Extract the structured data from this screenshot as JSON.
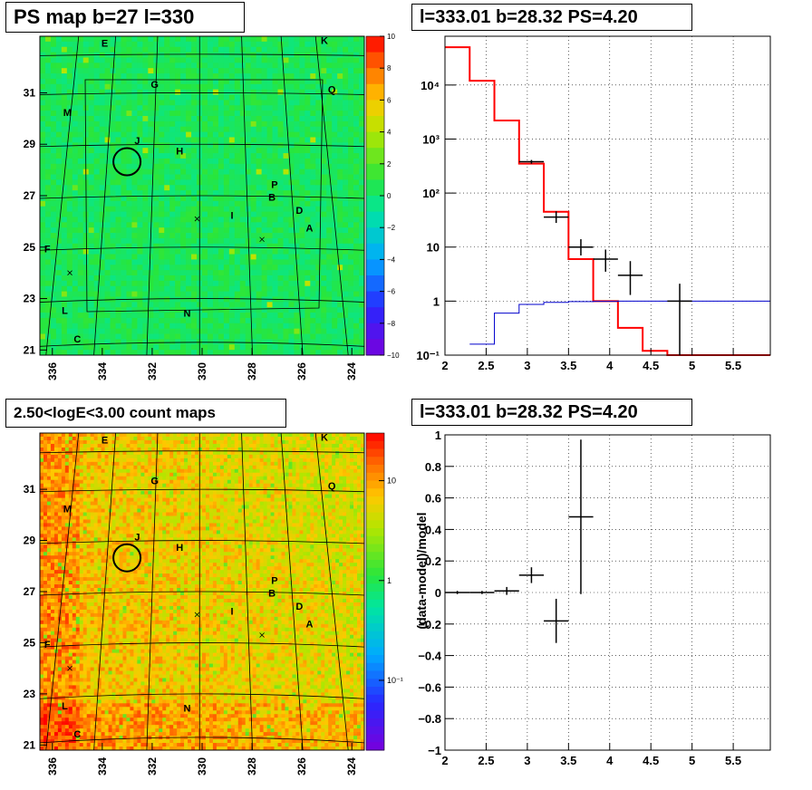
{
  "panels": {
    "ps_map": {
      "title": "PS map b=27 l=330",
      "x_ticks": [
        "336",
        "334",
        "332",
        "330",
        "328",
        "326",
        "324"
      ],
      "y_ticks": [
        "31",
        "29",
        "27",
        "25",
        "23",
        "21"
      ],
      "colorbar_ticks": [
        "10",
        "8",
        "6",
        "4",
        "2",
        "0",
        "−2",
        "−4",
        "−6",
        "−8",
        "−10"
      ],
      "source_labels": [
        "E",
        "K",
        "G",
        "Q",
        "M",
        "J",
        "H",
        "P",
        "B",
        "D",
        "I",
        "A",
        "F",
        "L",
        "N",
        "C"
      ]
    },
    "count_map": {
      "title": "2.50<logE<3.00 count maps",
      "x_ticks": [
        "336",
        "334",
        "332",
        "330",
        "328",
        "326",
        "324"
      ],
      "y_ticks": [
        "31",
        "29",
        "27",
        "25",
        "23",
        "21"
      ],
      "colorbar_ticks": [
        "10",
        "1",
        "10⁻¹"
      ],
      "source_labels": [
        "E",
        "K",
        "G",
        "Q",
        "M",
        "J",
        "H",
        "P",
        "B",
        "D",
        "I",
        "A",
        "F",
        "L",
        "N",
        "C"
      ]
    },
    "spectrum": {
      "title": "l=333.01 b=28.32 PS=4.20",
      "x_ticks": [
        "2",
        "2.5",
        "3",
        "3.5",
        "4",
        "4.5",
        "5",
        "5.5"
      ],
      "y_ticks": [
        "10⁻¹",
        "1",
        "10",
        "10²",
        "10³",
        "10⁴"
      ]
    },
    "residual": {
      "title": "l=333.01 b=28.32 PS=4.20",
      "ylabel": "(data-model)/model",
      "x_ticks": [
        "2",
        "2.5",
        "3",
        "3.5",
        "4",
        "4.5",
        "5",
        "5.5"
      ],
      "y_ticks": [
        "1",
        "0.8",
        "0.6",
        "0.4",
        "0.2",
        "0",
        "−0.2",
        "−0.4",
        "−0.6",
        "−0.8",
        "−1"
      ]
    }
  },
  "chart_data": [
    {
      "type": "heatmap",
      "title": "PS map b=27 l=330",
      "xlim": [
        336.5,
        323.5
      ],
      "ylim": [
        20.8,
        33.2
      ],
      "zlim": [
        -10,
        10
      ],
      "colorbar": "rainbow",
      "sources": [
        {
          "label": "E",
          "l": 333.9,
          "b": 32.8
        },
        {
          "label": "K",
          "l": 325.1,
          "b": 32.9
        },
        {
          "label": "G",
          "l": 331.9,
          "b": 31.2
        },
        {
          "label": "Q",
          "l": 324.8,
          "b": 31.0
        },
        {
          "label": "M",
          "l": 335.4,
          "b": 30.1
        },
        {
          "label": "J",
          "l": 332.6,
          "b": 29.0
        },
        {
          "label": "H",
          "l": 330.9,
          "b": 28.6
        },
        {
          "label": "P",
          "l": 327.1,
          "b": 27.3
        },
        {
          "label": "B",
          "l": 327.2,
          "b": 26.8
        },
        {
          "label": "D",
          "l": 326.1,
          "b": 26.3
        },
        {
          "label": "I",
          "l": 328.8,
          "b": 26.1
        },
        {
          "label": "A",
          "l": 325.7,
          "b": 25.6
        },
        {
          "label": "F",
          "l": 336.2,
          "b": 24.8
        },
        {
          "label": "L",
          "l": 335.5,
          "b": 22.4
        },
        {
          "label": "N",
          "l": 330.6,
          "b": 22.3
        },
        {
          "label": "C",
          "l": 335.0,
          "b": 21.3
        }
      ],
      "candidate_circle": {
        "l": 333.01,
        "b": 28.32
      }
    },
    {
      "type": "heatmap",
      "title": "2.50<logE<3.00 count maps",
      "xlim": [
        336.5,
        323.5
      ],
      "ylim": [
        20.8,
        33.2
      ],
      "zscale": "log",
      "zlim": [
        0.02,
        30
      ],
      "colorbar": "rainbow"
    },
    {
      "type": "line",
      "title": "l=333.01 b=28.32 PS=4.20",
      "xlim": [
        2,
        5.95
      ],
      "ylim": [
        0.1,
        80000
      ],
      "yscale": "log",
      "grid": true,
      "series": [
        {
          "style": "step",
          "color": "#ff0000",
          "bins": [
            [
              2.0,
              2.3,
              50000
            ],
            [
              2.3,
              2.6,
              12000
            ],
            [
              2.6,
              2.9,
              2200
            ],
            [
              2.9,
              3.2,
              350
            ],
            [
              3.2,
              3.5,
              45
            ],
            [
              3.5,
              3.8,
              6
            ],
            [
              3.8,
              4.1,
              1
            ],
            [
              4.1,
              4.4,
              0.32
            ],
            [
              4.4,
              4.7,
              0.12
            ],
            [
              4.7,
              5.0,
              0.1
            ],
            [
              5.0,
              5.95,
              0.1
            ]
          ]
        },
        {
          "style": "step",
          "color": "#0000cc",
          "bins": [
            [
              2.3,
              2.6,
              0.16
            ],
            [
              2.6,
              2.9,
              0.6
            ],
            [
              2.9,
              3.2,
              0.87
            ],
            [
              3.2,
              3.5,
              0.95
            ],
            [
              3.5,
              3.8,
              0.98
            ],
            [
              3.8,
              4.1,
              0.99
            ],
            [
              4.1,
              4.4,
              1.0
            ],
            [
              4.4,
              4.7,
              1.0
            ],
            [
              4.7,
              5.0,
              1.0
            ],
            [
              5.0,
              5.95,
              1.0
            ]
          ]
        },
        {
          "style": "errorbar",
          "color": "#000000",
          "points": [
            {
              "x": 3.05,
              "dx": 0.15,
              "y": 380,
              "lo": 350,
              "hi": 410
            },
            {
              "x": 3.35,
              "dx": 0.15,
              "y": 36,
              "lo": 28,
              "hi": 46
            },
            {
              "x": 3.65,
              "dx": 0.15,
              "y": 10,
              "lo": 7,
              "hi": 14
            },
            {
              "x": 3.95,
              "dx": 0.15,
              "y": 6,
              "lo": 3.5,
              "hi": 9
            },
            {
              "x": 4.25,
              "dx": 0.15,
              "y": 3,
              "lo": 1.3,
              "hi": 5.5
            },
            {
              "x": 4.85,
              "dx": 0.15,
              "y": 1,
              "lo": 0.1,
              "hi": 2.1
            }
          ]
        }
      ]
    },
    {
      "type": "scatter",
      "title": "l=333.01 b=28.32 PS=4.20",
      "xlim": [
        2,
        5.95
      ],
      "ylim": [
        -1,
        1
      ],
      "ylabel": "(data-model)/model",
      "grid": true,
      "points": [
        {
          "x": 2.15,
          "dx": 0.15,
          "y": 0.0,
          "dy": 0.01
        },
        {
          "x": 2.45,
          "dx": 0.15,
          "y": 0.0,
          "dy": 0.01
        },
        {
          "x": 2.75,
          "dx": 0.15,
          "y": 0.01,
          "dy": 0.025
        },
        {
          "x": 3.05,
          "dx": 0.15,
          "y": 0.11,
          "dy": 0.05
        },
        {
          "x": 3.35,
          "dx": 0.15,
          "y": -0.18,
          "dy": 0.14
        },
        {
          "x": 3.65,
          "dx": 0.15,
          "y": 0.48,
          "dy": 0.49
        }
      ]
    }
  ]
}
